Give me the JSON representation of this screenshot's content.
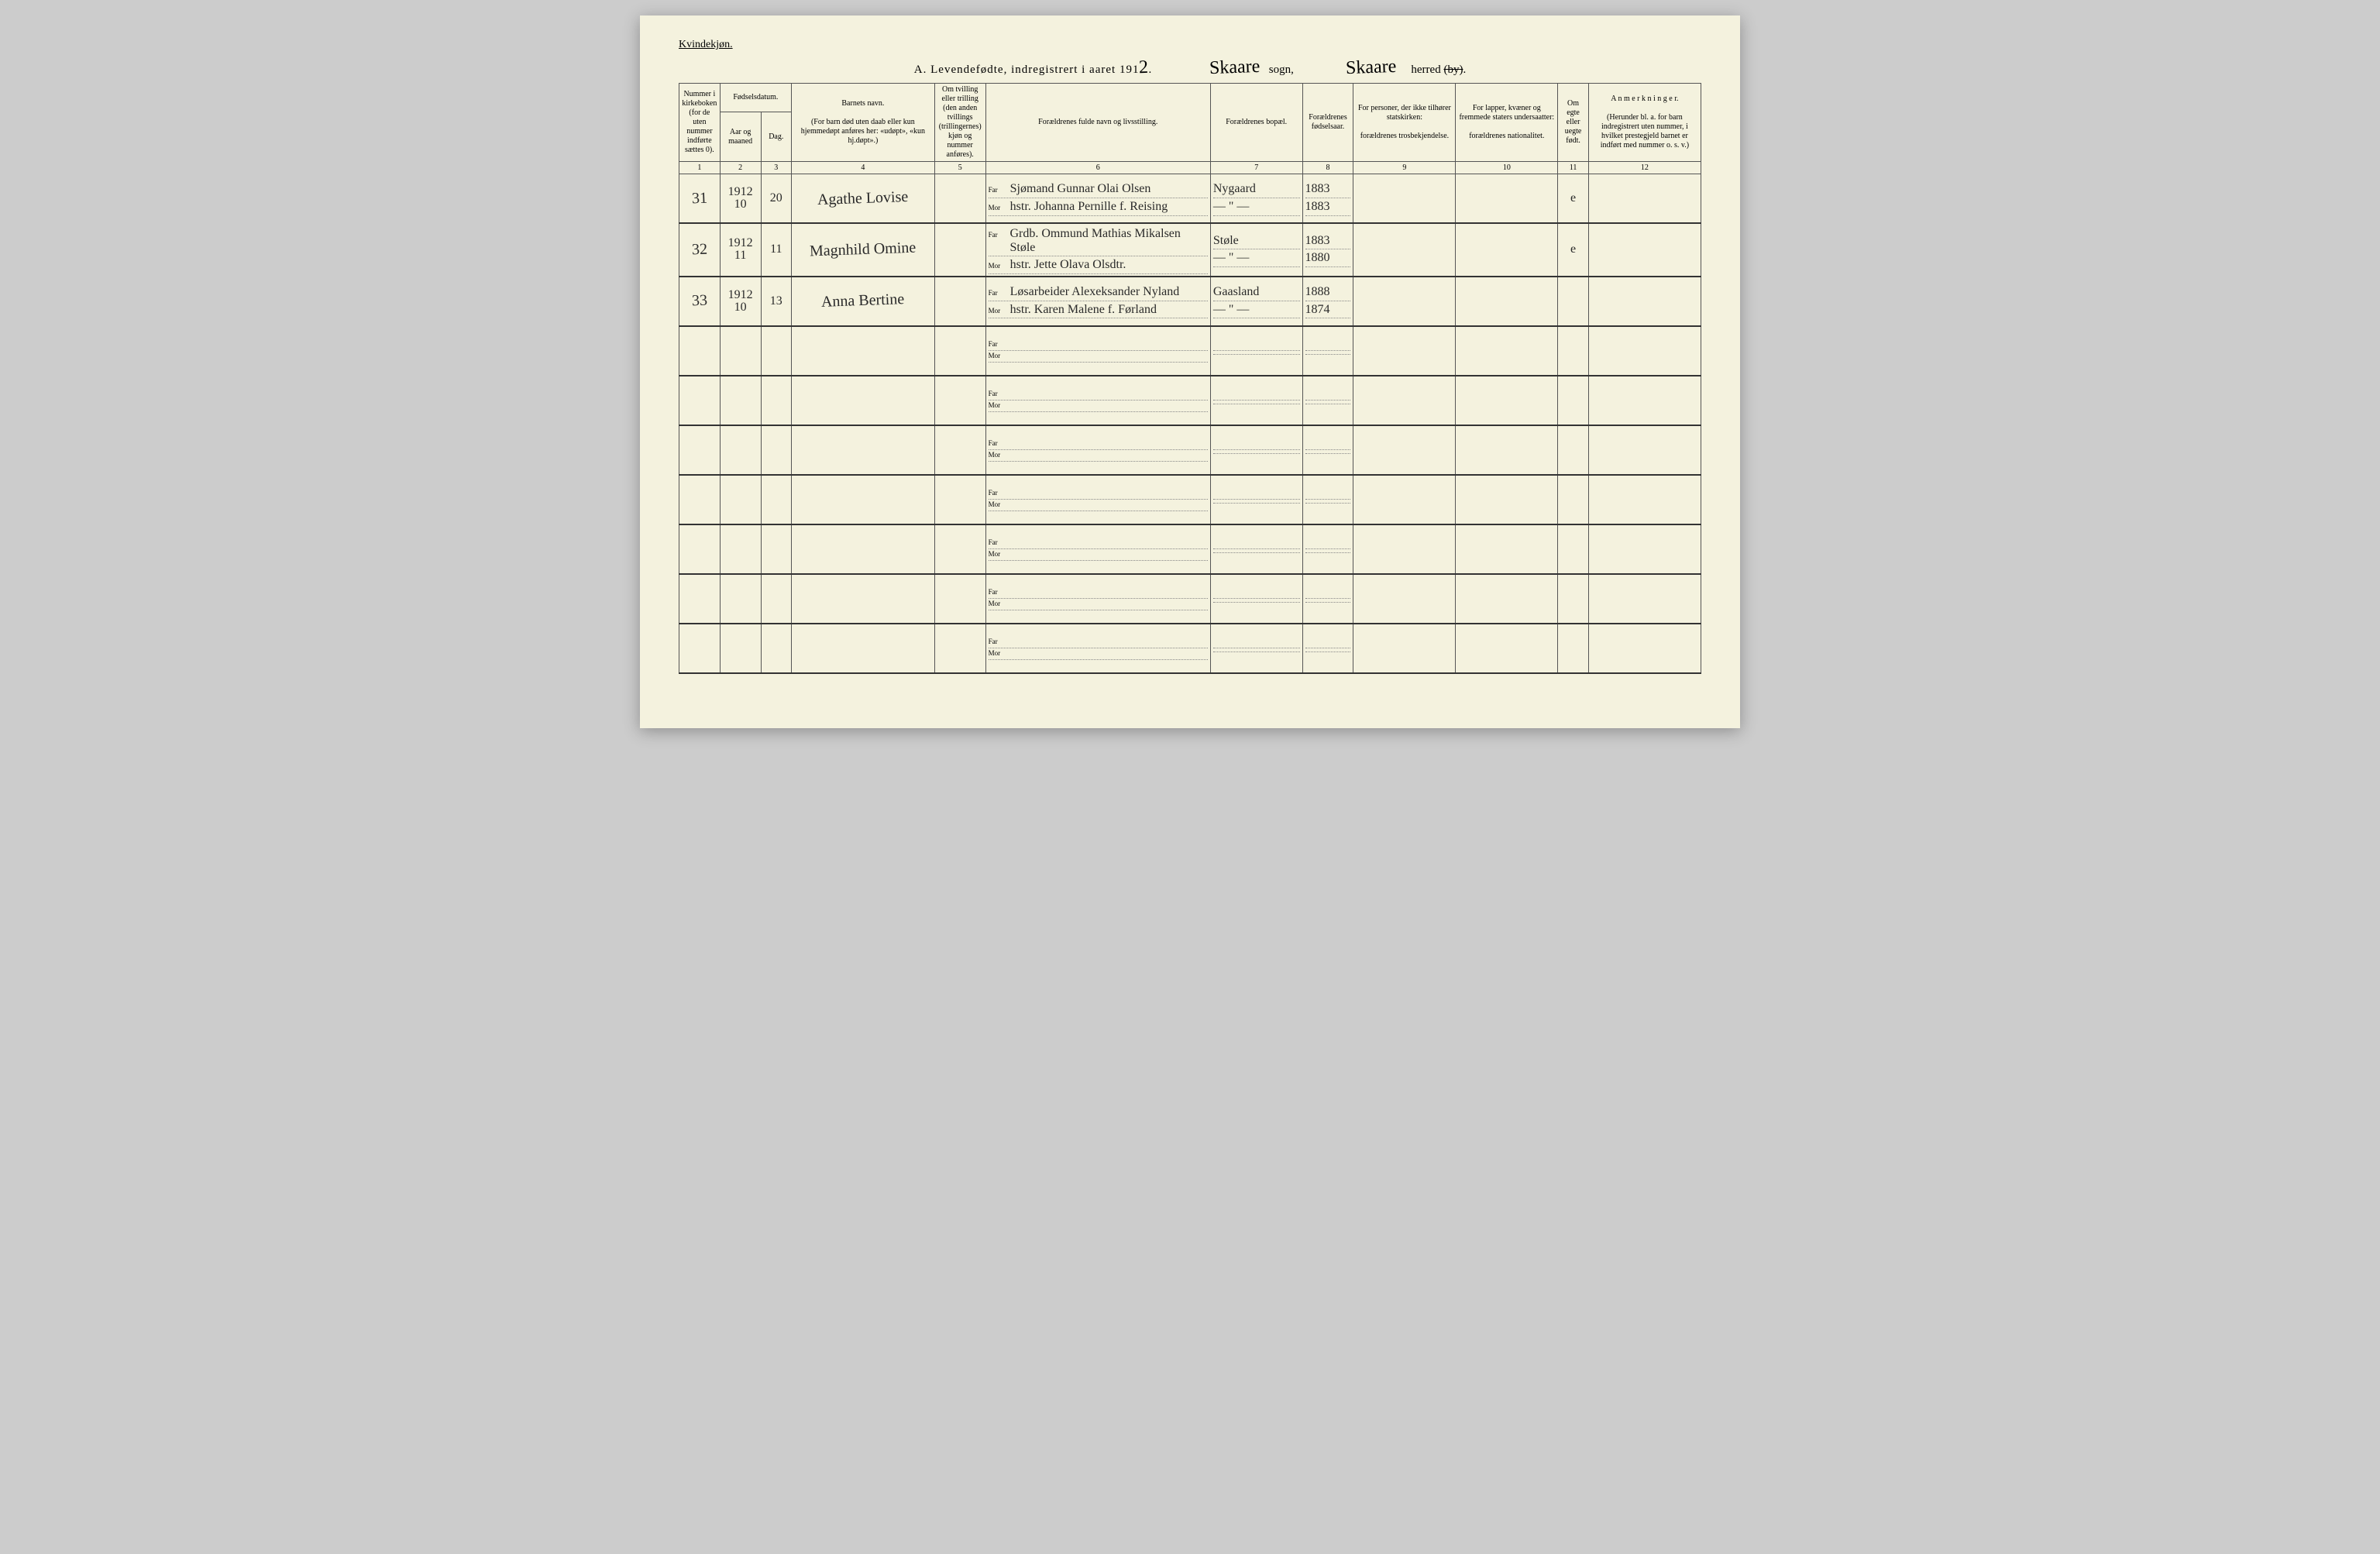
{
  "header": {
    "gender": "Kvindekjøn.",
    "title_prefix": "A.  Levendefødte, indregistrert i aaret 191",
    "year_digit": "2",
    "sogn_hand": "Skaare",
    "sogn_label": "sogn,",
    "herred_hand": "Skaare",
    "herred_label": "herred",
    "by_struck": "(by)",
    "period": "."
  },
  "columns": {
    "c1": "Nummer i kirkeboken (for de uten nummer indførte sættes 0).",
    "c2_group": "Fødselsdatum.",
    "c2a": "Aar og maaned",
    "c2b": "Dag.",
    "c4": "Barnets navn.",
    "c4_sub": "(For barn død uten daab eller kun hjemmedøpt anføres her: «udøpt», «kun hj.døpt».)",
    "c5": "Om tvilling eller trilling (den anden tvillings (trillingernes) kjøn og nummer anføres).",
    "c6": "Forældrenes fulde navn og livsstilling.",
    "c7": "Forældrenes bopæl.",
    "c8": "Forældrenes fødselsaar.",
    "c9": "For personer, der ikke tilhører statskirken:",
    "c9_sub": "forældrenes trosbekjendelse.",
    "c10": "For lapper, kvæner og fremmede staters undersaatter:",
    "c10_sub": "forældrenes nationalitet.",
    "c11": "Om egte eller uegte født.",
    "c12": "A n m e r k n i n g e r.",
    "c12_sub": "(Herunder bl. a. for barn indregistrert uten nummer, i hvilket prestegjeld barnet er indført med nummer o. s. v.)"
  },
  "colnums": [
    "1",
    "2",
    "3",
    "4",
    "5",
    "6",
    "7",
    "8",
    "9",
    "10",
    "11",
    "12"
  ],
  "parent_labels": {
    "far": "Far",
    "mor": "Mor"
  },
  "rows": [
    {
      "num": "31",
      "year": "1912",
      "month": "10",
      "day": "20",
      "name": "Agathe Lovise",
      "twin": "",
      "far": "Sjømand Gunnar Olai Olsen",
      "mor": "hstr. Johanna Pernille f. Reising",
      "bopel_far": "Nygaard",
      "bopel_mor": "— \" —",
      "byear_far": "1883",
      "byear_mor": "1883",
      "c9": "",
      "c10": "",
      "egte": "e",
      "anm": ""
    },
    {
      "num": "32",
      "year": "1912",
      "month": "11",
      "day": "11",
      "name": "Magnhild Omine",
      "twin": "",
      "far": "Grdb. Ommund Mathias Mikalsen Støle",
      "mor": "hstr. Jette Olava Olsdtr.",
      "bopel_far": "Støle",
      "bopel_mor": "— \" —",
      "byear_far": "1883",
      "byear_mor": "1880",
      "c9": "",
      "c10": "",
      "egte": "e",
      "anm": ""
    },
    {
      "num": "33",
      "year": "1912",
      "month": "10",
      "day": "13",
      "name": "Anna Bertine",
      "twin": "",
      "far": "Løsarbeider Alexeksander Nyland",
      "mor": "hstr. Karen Malene f. Førland",
      "bopel_far": "Gaasland",
      "bopel_mor": "— \" —",
      "byear_far": "1888",
      "byear_mor": "1874",
      "c9": "",
      "c10": "",
      "egte": "",
      "anm": ""
    },
    {
      "num": "",
      "year": "",
      "month": "",
      "day": "",
      "name": "",
      "twin": "",
      "far": "",
      "mor": "",
      "bopel_far": "",
      "bopel_mor": "",
      "byear_far": "",
      "byear_mor": "",
      "c9": "",
      "c10": "",
      "egte": "",
      "anm": ""
    },
    {
      "num": "",
      "year": "",
      "month": "",
      "day": "",
      "name": "",
      "twin": "",
      "far": "",
      "mor": "",
      "bopel_far": "",
      "bopel_mor": "",
      "byear_far": "",
      "byear_mor": "",
      "c9": "",
      "c10": "",
      "egte": "",
      "anm": ""
    },
    {
      "num": "",
      "year": "",
      "month": "",
      "day": "",
      "name": "",
      "twin": "",
      "far": "",
      "mor": "",
      "bopel_far": "",
      "bopel_mor": "",
      "byear_far": "",
      "byear_mor": "",
      "c9": "",
      "c10": "",
      "egte": "",
      "anm": ""
    },
    {
      "num": "",
      "year": "",
      "month": "",
      "day": "",
      "name": "",
      "twin": "",
      "far": "",
      "mor": "",
      "bopel_far": "",
      "bopel_mor": "",
      "byear_far": "",
      "byear_mor": "",
      "c9": "",
      "c10": "",
      "egte": "",
      "anm": ""
    },
    {
      "num": "",
      "year": "",
      "month": "",
      "day": "",
      "name": "",
      "twin": "",
      "far": "",
      "mor": "",
      "bopel_far": "",
      "bopel_mor": "",
      "byear_far": "",
      "byear_mor": "",
      "c9": "",
      "c10": "",
      "egte": "",
      "anm": ""
    },
    {
      "num": "",
      "year": "",
      "month": "",
      "day": "",
      "name": "",
      "twin": "",
      "far": "",
      "mor": "",
      "bopel_far": "",
      "bopel_mor": "",
      "byear_far": "",
      "byear_mor": "",
      "c9": "",
      "c10": "",
      "egte": "",
      "anm": ""
    },
    {
      "num": "",
      "year": "",
      "month": "",
      "day": "",
      "name": "",
      "twin": "",
      "far": "",
      "mor": "",
      "bopel_far": "",
      "bopel_mor": "",
      "byear_far": "",
      "byear_mor": "",
      "c9": "",
      "c10": "",
      "egte": "",
      "anm": ""
    }
  ],
  "layout": {
    "col_widths_pct": [
      4,
      4,
      3,
      14,
      5,
      22,
      9,
      5,
      10,
      10,
      3,
      11
    ]
  }
}
